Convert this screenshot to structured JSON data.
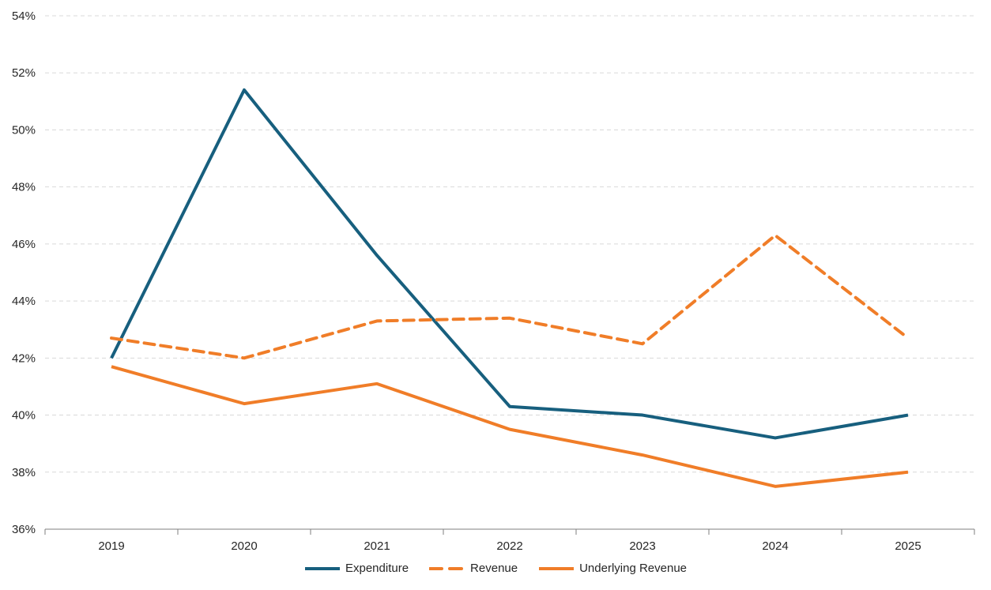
{
  "chart_data": {
    "type": "line",
    "title": "",
    "xlabel": "",
    "ylabel": "",
    "categories": [
      "2019",
      "2020",
      "2021",
      "2022",
      "2023",
      "2024",
      "2025"
    ],
    "series": [
      {
        "name": "Expenditure",
        "values": [
          42.0,
          51.4,
          45.6,
          40.3,
          40.0,
          39.2,
          40.0
        ],
        "color": "#175F7E",
        "dash": "solid"
      },
      {
        "name": "Revenue",
        "values": [
          42.7,
          42.0,
          43.3,
          43.4,
          42.5,
          46.3,
          42.7
        ],
        "color": "#F07D28",
        "dash": "dashed"
      },
      {
        "name": "Underlying Revenue",
        "values": [
          41.7,
          40.4,
          41.1,
          39.5,
          38.6,
          37.5,
          38.0
        ],
        "color": "#F07D28",
        "dash": "solid"
      }
    ],
    "ylim": [
      36,
      54
    ],
    "ytick_step": 2,
    "ytick_suffix": "%",
    "y_tick_labels": [
      "36%",
      "38%",
      "40%",
      "42%",
      "44%",
      "46%",
      "48%",
      "50%",
      "52%",
      "54%"
    ],
    "x_tick_labels": [
      "2019",
      "2020",
      "2021",
      "2022",
      "2023",
      "2024",
      "2025"
    ],
    "grid": "horizontal-dashed",
    "legend_position": "bottom",
    "colors": {
      "gridline": "#D9D9D9",
      "axis": "#7F7F7F",
      "text": "#262626",
      "background": "#FFFFFF"
    }
  }
}
